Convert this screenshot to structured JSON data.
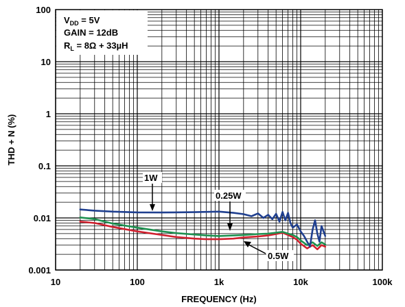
{
  "chart_data": {
    "type": "line",
    "x_scale": "log",
    "y_scale": "log",
    "xlim": [
      10,
      100000
    ],
    "ylim": [
      0.001,
      100
    ],
    "xlabel": "FREQUENCY (Hz)",
    "ylabel": "THD + N (%)",
    "x_ticks": [
      "10",
      "100",
      "1k",
      "10k",
      "100k"
    ],
    "y_ticks": [
      "0.001",
      "0.01",
      "0.1",
      "1",
      "10",
      "100"
    ],
    "grid": true,
    "conditions": {
      "vdd_main": "V",
      "vdd_sub": "DD",
      "vdd_value": " = 5V",
      "gain": "GAIN = 12dB",
      "rl_main": "R",
      "rl_sub": "L",
      "rl_value": " = 8Ω + 33µH"
    },
    "annotations": {
      "s1w": "1W",
      "s025w": "0.25W",
      "s05w": "0.5W"
    },
    "series": [
      {
        "name": "1W",
        "color": "#1f3f8f",
        "x": [
          20,
          30,
          50,
          100,
          200,
          500,
          1000,
          1500,
          2000,
          2500,
          3000,
          3500,
          4000,
          4500,
          5000,
          5500,
          6000,
          6500,
          7000,
          7500,
          8000,
          9000,
          10000,
          11000,
          12000,
          13000,
          14000,
          15000,
          16000,
          17000,
          18000,
          20000
        ],
        "y": [
          0.0145,
          0.0138,
          0.0132,
          0.0128,
          0.0127,
          0.0129,
          0.0132,
          0.0125,
          0.0118,
          0.0108,
          0.0122,
          0.01,
          0.0115,
          0.0095,
          0.012,
          0.0085,
          0.013,
          0.009,
          0.0125,
          0.008,
          0.0065,
          0.0075,
          0.0055,
          0.0045,
          0.0035,
          0.0028,
          0.006,
          0.009,
          0.005,
          0.0035,
          0.007,
          0.0045
        ]
      },
      {
        "name": "0.25W",
        "color": "#1e9150",
        "x": [
          20,
          30,
          50,
          100,
          200,
          300,
          500,
          700,
          1000,
          1500,
          2000,
          3000,
          4000,
          5000,
          6000,
          7000,
          8000,
          9000,
          10000,
          12000,
          14000,
          16000,
          18000,
          20000
        ],
        "y": [
          0.0102,
          0.0095,
          0.0078,
          0.0065,
          0.0055,
          0.0051,
          0.0048,
          0.0046,
          0.0045,
          0.0046,
          0.0047,
          0.0049,
          0.005,
          0.0052,
          0.0054,
          0.005,
          0.0047,
          0.0043,
          0.0037,
          0.003,
          0.0034,
          0.0029,
          0.0034,
          0.0031
        ]
      },
      {
        "name": "0.5W",
        "color": "#d0202e",
        "x": [
          20,
          30,
          50,
          100,
          200,
          300,
          500,
          700,
          1000,
          1500,
          2000,
          3000,
          4000,
          5000,
          6000,
          7000,
          8000,
          9000,
          10000,
          12000,
          14000,
          16000,
          18000,
          20000
        ],
        "y": [
          0.0085,
          0.008,
          0.0067,
          0.0055,
          0.0047,
          0.0043,
          0.004,
          0.0039,
          0.0039,
          0.004,
          0.0042,
          0.0044,
          0.0046,
          0.0049,
          0.0052,
          0.0047,
          0.0043,
          0.0038,
          0.0032,
          0.0026,
          0.003,
          0.0025,
          0.003,
          0.0028
        ]
      }
    ]
  }
}
